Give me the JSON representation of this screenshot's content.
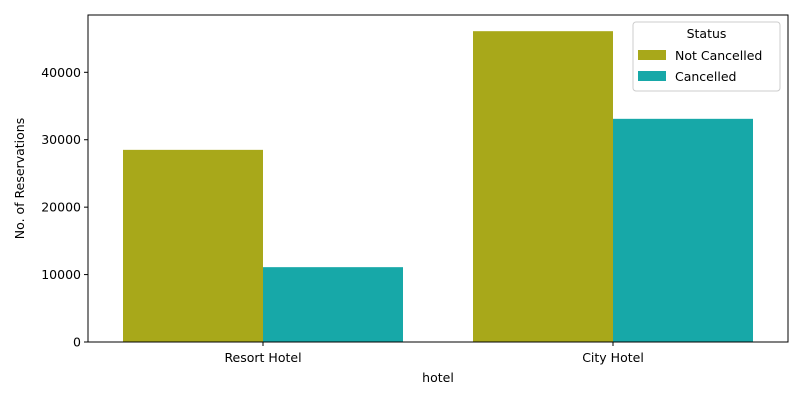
{
  "chart_data": {
    "type": "bar",
    "categories": [
      "Resort Hotel",
      "City Hotel"
    ],
    "series": [
      {
        "name": "Not Cancelled",
        "values": [
          28500,
          46100
        ],
        "color": "#a8a81a"
      },
      {
        "name": "Cancelled",
        "values": [
          11100,
          33100
        ],
        "color": "#17a8a8"
      }
    ],
    "xlabel": "hotel",
    "ylabel": "No. of Reservations",
    "ylim": [
      0,
      48500
    ],
    "yticks": [
      0,
      10000,
      20000,
      30000,
      40000
    ],
    "grid": false,
    "legend": {
      "title": "Status",
      "placement": "top-right"
    }
  }
}
